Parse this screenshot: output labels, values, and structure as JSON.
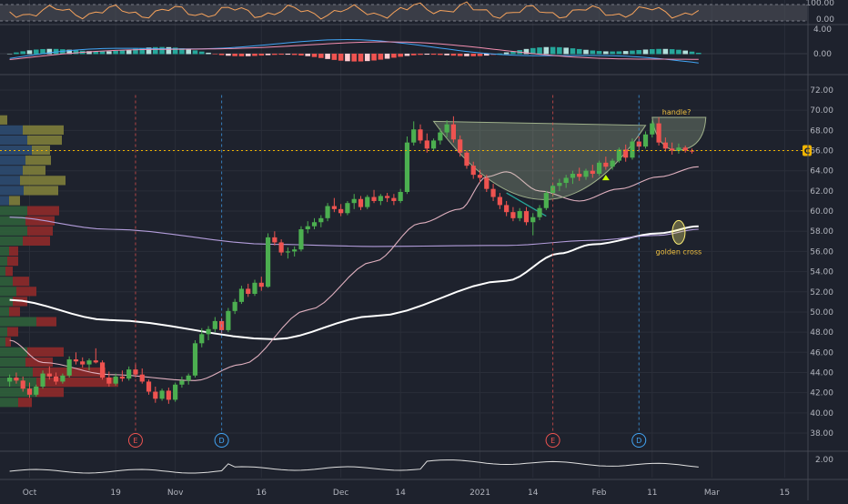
{
  "chart_data": {
    "type": "candlestick",
    "main_panel": {
      "y_axis_ticks": [
        "72.00",
        "70.00",
        "68.00",
        "66.00",
        "64.00",
        "62.00",
        "60.00",
        "58.00",
        "56.00",
        "54.00",
        "52.00",
        "50.00",
        "48.00",
        "46.00",
        "44.00",
        "42.00",
        "40.00",
        "38.00"
      ],
      "ylim": [
        37,
        73
      ],
      "current_price_marker": 66.0,
      "bar_count": 104,
      "candles_ohlc": [
        [
          43.1,
          43.8,
          42.6,
          43.5
        ],
        [
          43.5,
          44.0,
          42.9,
          43.2
        ],
        [
          43.2,
          43.6,
          42.1,
          42.4
        ],
        [
          42.4,
          43.0,
          41.5,
          41.8
        ],
        [
          41.8,
          42.8,
          41.6,
          42.6
        ],
        [
          42.6,
          44.2,
          42.4,
          43.9
        ],
        [
          43.9,
          44.6,
          43.3,
          43.6
        ],
        [
          43.6,
          44.0,
          42.8,
          43.1
        ],
        [
          43.1,
          43.9,
          42.9,
          43.7
        ],
        [
          43.7,
          45.6,
          43.5,
          45.3
        ],
        [
          45.3,
          46.0,
          44.8,
          45.1
        ],
        [
          45.1,
          45.5,
          44.5,
          44.8
        ],
        [
          44.8,
          45.4,
          44.2,
          45.2
        ],
        [
          45.2,
          46.4,
          44.9,
          45.0
        ],
        [
          45.0,
          45.2,
          43.3,
          43.5
        ],
        [
          43.5,
          44.1,
          42.6,
          42.9
        ],
        [
          42.9,
          43.9,
          42.7,
          43.6
        ],
        [
          43.6,
          44.2,
          43.1,
          43.4
        ],
        [
          43.4,
          44.6,
          43.2,
          44.3
        ],
        [
          44.3,
          44.8,
          43.5,
          43.8
        ],
        [
          43.8,
          44.4,
          42.9,
          43.1
        ],
        [
          43.1,
          43.3,
          41.8,
          42.1
        ],
        [
          42.1,
          42.6,
          41.0,
          41.4
        ],
        [
          41.4,
          42.4,
          41.2,
          42.2
        ],
        [
          42.2,
          42.5,
          40.9,
          41.3
        ],
        [
          41.3,
          43.0,
          41.1,
          42.8
        ],
        [
          42.8,
          43.6,
          42.5,
          43.2
        ],
        [
          43.2,
          43.9,
          42.8,
          43.7
        ],
        [
          43.7,
          47.2,
          43.5,
          46.9
        ],
        [
          46.9,
          48.4,
          46.5,
          47.8
        ],
        [
          47.8,
          48.6,
          47.2,
          48.3
        ],
        [
          48.3,
          49.5,
          48.0,
          49.1
        ],
        [
          49.1,
          49.4,
          47.9,
          48.2
        ],
        [
          48.2,
          50.4,
          48.0,
          50.1
        ],
        [
          50.1,
          51.3,
          49.8,
          51.0
        ],
        [
          51.0,
          52.6,
          50.8,
          52.3
        ],
        [
          52.3,
          52.8,
          51.5,
          51.8
        ],
        [
          51.8,
          53.2,
          51.6,
          52.9
        ],
        [
          52.9,
          53.5,
          52.1,
          52.5
        ],
        [
          52.5,
          57.8,
          52.4,
          57.4
        ],
        [
          57.4,
          58.0,
          56.6,
          56.9
        ],
        [
          56.9,
          57.2,
          55.6,
          55.9
        ],
        [
          55.9,
          56.4,
          55.3,
          56.0
        ],
        [
          56.0,
          56.5,
          55.5,
          56.2
        ],
        [
          56.2,
          58.5,
          56.0,
          58.2
        ],
        [
          58.2,
          59.0,
          57.8,
          58.5
        ],
        [
          58.5,
          59.3,
          58.2,
          58.9
        ],
        [
          58.9,
          59.6,
          58.4,
          59.3
        ],
        [
          59.3,
          60.8,
          59.0,
          60.5
        ],
        [
          60.5,
          61.3,
          59.9,
          60.2
        ],
        [
          60.2,
          60.7,
          59.5,
          59.8
        ],
        [
          59.8,
          61.0,
          59.6,
          60.8
        ],
        [
          60.8,
          61.7,
          60.2,
          61.2
        ],
        [
          61.2,
          61.5,
          60.1,
          60.4
        ],
        [
          60.4,
          61.6,
          60.2,
          61.4
        ],
        [
          61.4,
          62.1,
          60.8,
          61.0
        ],
        [
          61.0,
          61.7,
          60.6,
          61.5
        ],
        [
          61.5,
          61.8,
          60.9,
          61.3
        ],
        [
          61.3,
          61.7,
          60.6,
          61.0
        ],
        [
          61.0,
          62.2,
          60.8,
          61.9
        ],
        [
          61.9,
          67.4,
          61.7,
          66.8
        ],
        [
          66.8,
          68.9,
          66.5,
          68.1
        ],
        [
          68.1,
          68.6,
          66.7,
          67.0
        ],
        [
          67.0,
          67.7,
          65.8,
          66.2
        ],
        [
          66.2,
          67.2,
          66.0,
          67.0
        ],
        [
          67.0,
          68.2,
          66.6,
          67.8
        ],
        [
          67.8,
          69.0,
          67.3,
          68.6
        ],
        [
          68.6,
          69.4,
          66.8,
          67.1
        ],
        [
          67.1,
          67.5,
          65.4,
          65.8
        ],
        [
          65.8,
          66.0,
          64.2,
          64.5
        ],
        [
          64.5,
          64.9,
          63.2,
          63.6
        ],
        [
          63.6,
          64.1,
          62.8,
          63.3
        ],
        [
          63.3,
          63.6,
          61.9,
          62.2
        ],
        [
          62.2,
          62.7,
          61.0,
          61.4
        ],
        [
          61.4,
          61.8,
          60.2,
          60.6
        ],
        [
          60.6,
          61.0,
          59.5,
          59.9
        ],
        [
          59.9,
          60.4,
          59.0,
          59.3
        ],
        [
          59.3,
          60.3,
          59.0,
          60.0
        ],
        [
          60.0,
          60.4,
          58.6,
          58.9
        ],
        [
          58.9,
          59.8,
          57.6,
          59.4
        ],
        [
          59.4,
          60.6,
          59.1,
          60.3
        ],
        [
          60.3,
          62.0,
          60.1,
          61.8
        ],
        [
          61.8,
          62.7,
          61.4,
          62.5
        ],
        [
          62.5,
          63.2,
          62.0,
          62.8
        ],
        [
          62.8,
          63.6,
          62.3,
          63.3
        ],
        [
          63.3,
          64.0,
          62.7,
          63.7
        ],
        [
          63.7,
          64.3,
          63.0,
          63.4
        ],
        [
          63.4,
          64.2,
          63.1,
          64.0
        ],
        [
          64.0,
          64.6,
          63.3,
          63.7
        ],
        [
          63.7,
          65.0,
          63.5,
          64.8
        ],
        [
          64.8,
          65.4,
          64.1,
          64.4
        ],
        [
          64.4,
          65.2,
          64.1,
          65.0
        ],
        [
          65.0,
          66.3,
          64.8,
          66.1
        ],
        [
          66.1,
          66.6,
          64.9,
          65.3
        ],
        [
          65.3,
          67.2,
          65.1,
          66.9
        ],
        [
          66.9,
          67.4,
          66.0,
          66.4
        ],
        [
          66.4,
          67.9,
          66.2,
          67.6
        ],
        [
          67.6,
          69.0,
          67.3,
          68.7
        ],
        [
          68.7,
          69.3,
          66.5,
          66.8
        ],
        [
          66.8,
          67.3,
          65.9,
          66.2
        ],
        [
          66.2,
          66.8,
          65.6,
          66.0
        ],
        [
          66.0,
          66.7,
          65.7,
          66.3
        ],
        [
          66.3,
          66.5,
          65.8,
          66.0
        ],
        [
          66.0,
          66.2,
          65.7,
          65.9
        ]
      ],
      "moving_averages": [
        {
          "color": "#ffffff",
          "points": [
            [
              0,
              51.2
            ],
            [
              15,
              49.2
            ],
            [
              40,
              47.3
            ],
            [
              55,
              49.6
            ],
            [
              75,
              53.1
            ],
            [
              83,
              55.8
            ],
            [
              88,
              56.7
            ],
            [
              98,
              57.8
            ],
            [
              104,
              58.5
            ]
          ]
        },
        {
          "color": "#b39ddb",
          "points": [
            [
              0,
              59.4
            ],
            [
              15,
              58.2
            ],
            [
              40,
              56.7
            ],
            [
              55,
              56.5
            ],
            [
              75,
              56.6
            ],
            [
              88,
              57.1
            ],
            [
              98,
              57.6
            ],
            [
              104,
              58.2
            ]
          ]
        },
        {
          "color": "#e0b0bf",
          "points": [
            [
              0,
              47.2
            ],
            [
              5,
              45.0
            ],
            [
              15,
              43.8
            ],
            [
              28,
              43.2
            ],
            [
              35,
              44.8
            ],
            [
              45,
              50.2
            ],
            [
              55,
              55.0
            ],
            [
              62,
              58.8
            ],
            [
              68,
              60.2
            ],
            [
              72,
              63.4
            ],
            [
              75,
              63.9
            ],
            [
              80,
              62.0
            ],
            [
              86,
              61.0
            ],
            [
              92,
              62.2
            ],
            [
              98,
              63.4
            ],
            [
              104,
              64.4
            ]
          ]
        }
      ],
      "annotations": [
        {
          "type": "cup",
          "label": ""
        },
        {
          "type": "handle",
          "label": "handle?"
        },
        {
          "type": "ellipse",
          "label": "golden cross"
        }
      ],
      "event_markers": [
        {
          "label": "E",
          "color": "#ef5350",
          "bar": 19
        },
        {
          "label": "D",
          "color": "#42a5f5",
          "bar": 32
        },
        {
          "label": "E",
          "color": "#ef5350",
          "bar": 82
        },
        {
          "label": "D",
          "color": "#42a5f5",
          "bar": 95
        }
      ],
      "volume_profile": [
        {
          "price": 69.0,
          "up": 0,
          "down": 8
        },
        {
          "price": 68.0,
          "up": 25,
          "down": 45
        },
        {
          "price": 67.0,
          "up": 30,
          "down": 38
        },
        {
          "price": 66.0,
          "up": 35,
          "down": 20
        },
        {
          "price": 65.0,
          "up": 28,
          "down": 28
        },
        {
          "price": 64.0,
          "up": 25,
          "down": 25
        },
        {
          "price": 63.0,
          "up": 22,
          "down": 50
        },
        {
          "price": 62.0,
          "up": 26,
          "down": 38
        },
        {
          "price": 61.0,
          "up": 10,
          "down": 12
        },
        {
          "price": 60.0,
          "up": 30,
          "down": 35
        },
        {
          "price": 59.0,
          "up": 28,
          "down": 32
        },
        {
          "price": 58.0,
          "up": 30,
          "down": 28
        },
        {
          "price": 57.0,
          "up": 25,
          "down": 30
        },
        {
          "price": 56.0,
          "up": 10,
          "down": 10
        },
        {
          "price": 55.0,
          "up": 8,
          "down": 12
        },
        {
          "price": 54.0,
          "up": 6,
          "down": 8
        },
        {
          "price": 53.0,
          "up": 14,
          "down": 18
        },
        {
          "price": 52.0,
          "up": 18,
          "down": 22
        },
        {
          "price": 51.0,
          "up": 14,
          "down": 16
        },
        {
          "price": 50.0,
          "up": 10,
          "down": 12
        },
        {
          "price": 49.0,
          "up": 40,
          "down": 22
        },
        {
          "price": 48.0,
          "up": 8,
          "down": 12
        },
        {
          "price": 47.0,
          "up": 6,
          "down": 6
        },
        {
          "price": 46.0,
          "up": 30,
          "down": 40
        },
        {
          "price": 45.0,
          "up": 28,
          "down": 30
        },
        {
          "price": 44.0,
          "up": 36,
          "down": 80
        },
        {
          "price": 43.0,
          "up": 40,
          "down": 90
        },
        {
          "price": 42.0,
          "up": 40,
          "down": 30
        },
        {
          "price": 41.0,
          "up": 20,
          "down": 15
        }
      ]
    },
    "x_axis_ticks": [
      {
        "label": "Oct",
        "bar": 3
      },
      {
        "label": "19",
        "bar": 16
      },
      {
        "label": "Nov",
        "bar": 25
      },
      {
        "label": "16",
        "bar": 38
      },
      {
        "label": "Dec",
        "bar": 50
      },
      {
        "label": "14",
        "bar": 59
      },
      {
        "label": "2021",
        "bar": 71
      },
      {
        "label": "14",
        "bar": 79
      },
      {
        "label": "Feb",
        "bar": 89
      },
      {
        "label": "11",
        "bar": 97
      },
      {
        "label": "Mar",
        "bar": 106
      },
      {
        "label": "15",
        "bar": 117
      }
    ],
    "top_panel": {
      "y_ticks": [
        "100.00",
        "0.00"
      ]
    },
    "macd_panel": {
      "y_ticks": [
        "4.00",
        "0.00"
      ]
    },
    "bottom_panel": {
      "y_ticks": [
        "2.00"
      ]
    }
  }
}
